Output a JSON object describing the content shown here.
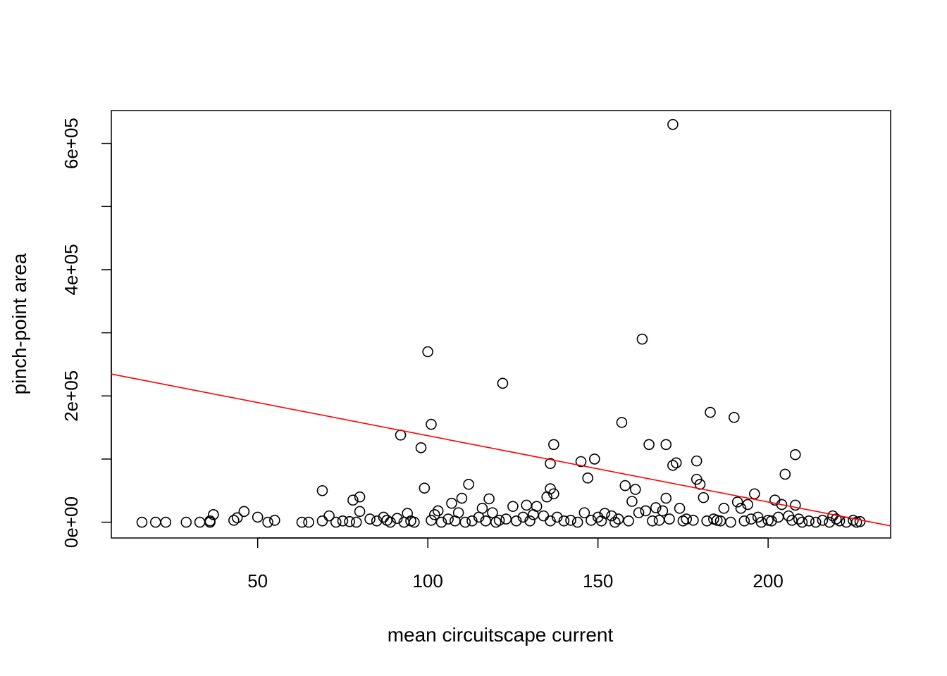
{
  "chart_data": {
    "type": "scatter",
    "title": "",
    "xlabel": "mean circuitscape current",
    "ylabel": "pinch-point area",
    "xlim": [
      7,
      236
    ],
    "ylim": [
      -25000,
      652000
    ],
    "x_ticks": [
      50,
      100,
      150,
      200
    ],
    "x_tick_labels": [
      "50",
      "100",
      "150",
      "200"
    ],
    "y_ticks": [
      0,
      100000,
      200000,
      300000,
      400000,
      500000,
      600000
    ],
    "y_tick_labels": [
      "0e+00",
      "2e+05",
      "4e+05",
      "6e+05"
    ],
    "y_labeled_ticks": [
      0,
      200000,
      400000,
      600000
    ],
    "grid": false,
    "legend": "none",
    "point_color": "#000000",
    "line_color": "#ff0000",
    "fit_line": {
      "intercept": 242000,
      "slope": -1050
    },
    "points": [
      [
        16,
        0
      ],
      [
        20,
        0
      ],
      [
        23,
        0
      ],
      [
        29,
        0
      ],
      [
        33,
        0
      ],
      [
        36,
        0
      ],
      [
        36,
        2000
      ],
      [
        37,
        12000
      ],
      [
        43,
        3000
      ],
      [
        44,
        7000
      ],
      [
        46,
        17000
      ],
      [
        50,
        8000
      ],
      [
        53,
        0
      ],
      [
        55,
        3000
      ],
      [
        63,
        0
      ],
      [
        65,
        0
      ],
      [
        69,
        50000
      ],
      [
        69,
        2000
      ],
      [
        71,
        10000
      ],
      [
        73,
        0
      ],
      [
        75,
        2000
      ],
      [
        77,
        1000
      ],
      [
        78,
        35000
      ],
      [
        79,
        0
      ],
      [
        80,
        40000
      ],
      [
        80,
        17000
      ],
      [
        83,
        5000
      ],
      [
        85,
        2000
      ],
      [
        87,
        8000
      ],
      [
        88,
        3000
      ],
      [
        89,
        0
      ],
      [
        91,
        6000
      ],
      [
        92,
        138000
      ],
      [
        93,
        0
      ],
      [
        94,
        14000
      ],
      [
        95,
        2000
      ],
      [
        96,
        0
      ],
      [
        98,
        118000
      ],
      [
        99,
        54000
      ],
      [
        100,
        270000
      ],
      [
        101,
        155000
      ],
      [
        101,
        3000
      ],
      [
        102,
        12000
      ],
      [
        103,
        18000
      ],
      [
        104,
        0
      ],
      [
        106,
        5000
      ],
      [
        107,
        30000
      ],
      [
        108,
        2000
      ],
      [
        109,
        15000
      ],
      [
        110,
        38000
      ],
      [
        111,
        0
      ],
      [
        112,
        60000
      ],
      [
        113,
        2000
      ],
      [
        115,
        8000
      ],
      [
        116,
        22000
      ],
      [
        117,
        2000
      ],
      [
        118,
        37000
      ],
      [
        119,
        15000
      ],
      [
        120,
        0
      ],
      [
        121,
        3000
      ],
      [
        122,
        220000
      ],
      [
        123,
        5000
      ],
      [
        125,
        25000
      ],
      [
        126,
        2000
      ],
      [
        128,
        8000
      ],
      [
        129,
        27000
      ],
      [
        130,
        2000
      ],
      [
        131,
        12000
      ],
      [
        132,
        25000
      ],
      [
        134,
        10000
      ],
      [
        135,
        40000
      ],
      [
        136,
        2000
      ],
      [
        136,
        53000
      ],
      [
        136,
        93000
      ],
      [
        137,
        45000
      ],
      [
        137,
        123000
      ],
      [
        138,
        8000
      ],
      [
        140,
        2000
      ],
      [
        142,
        3000
      ],
      [
        144,
        0
      ],
      [
        145,
        96000
      ],
      [
        146,
        15000
      ],
      [
        147,
        70000
      ],
      [
        148,
        3000
      ],
      [
        149,
        100000
      ],
      [
        150,
        8000
      ],
      [
        151,
        2000
      ],
      [
        152,
        14000
      ],
      [
        154,
        10000
      ],
      [
        155,
        0
      ],
      [
        156,
        5000
      ],
      [
        157,
        158000
      ],
      [
        158,
        58000
      ],
      [
        159,
        2000
      ],
      [
        160,
        33000
      ],
      [
        161,
        52000
      ],
      [
        162,
        15000
      ],
      [
        163,
        290000
      ],
      [
        164,
        18000
      ],
      [
        165,
        123000
      ],
      [
        166,
        2000
      ],
      [
        167,
        23000
      ],
      [
        168,
        3000
      ],
      [
        169,
        18000
      ],
      [
        170,
        123000
      ],
      [
        170,
        38000
      ],
      [
        171,
        5000
      ],
      [
        172,
        630000
      ],
      [
        172,
        90000
      ],
      [
        173,
        94000
      ],
      [
        174,
        22000
      ],
      [
        175,
        2000
      ],
      [
        176,
        5000
      ],
      [
        178,
        3000
      ],
      [
        179,
        97000
      ],
      [
        179,
        68000
      ],
      [
        180,
        60000
      ],
      [
        181,
        39000
      ],
      [
        182,
        2000
      ],
      [
        183,
        174000
      ],
      [
        184,
        5000
      ],
      [
        185,
        3000
      ],
      [
        186,
        2000
      ],
      [
        187,
        22000
      ],
      [
        189,
        0
      ],
      [
        190,
        166000
      ],
      [
        191,
        32000
      ],
      [
        192,
        22000
      ],
      [
        193,
        2000
      ],
      [
        194,
        28000
      ],
      [
        195,
        5000
      ],
      [
        196,
        45000
      ],
      [
        197,
        8000
      ],
      [
        198,
        0
      ],
      [
        200,
        3000
      ],
      [
        201,
        2000
      ],
      [
        202,
        35000
      ],
      [
        203,
        8000
      ],
      [
        204,
        28000
      ],
      [
        205,
        76000
      ],
      [
        206,
        10000
      ],
      [
        207,
        3000
      ],
      [
        208,
        107000
      ],
      [
        208,
        27000
      ],
      [
        209,
        5000
      ],
      [
        210,
        0
      ],
      [
        212,
        2000
      ],
      [
        214,
        0
      ],
      [
        216,
        3000
      ],
      [
        218,
        0
      ],
      [
        219,
        10000
      ],
      [
        220,
        5000
      ],
      [
        221,
        2000
      ],
      [
        223,
        0
      ],
      [
        225,
        3000
      ],
      [
        226,
        0
      ],
      [
        227,
        1000
      ]
    ]
  }
}
